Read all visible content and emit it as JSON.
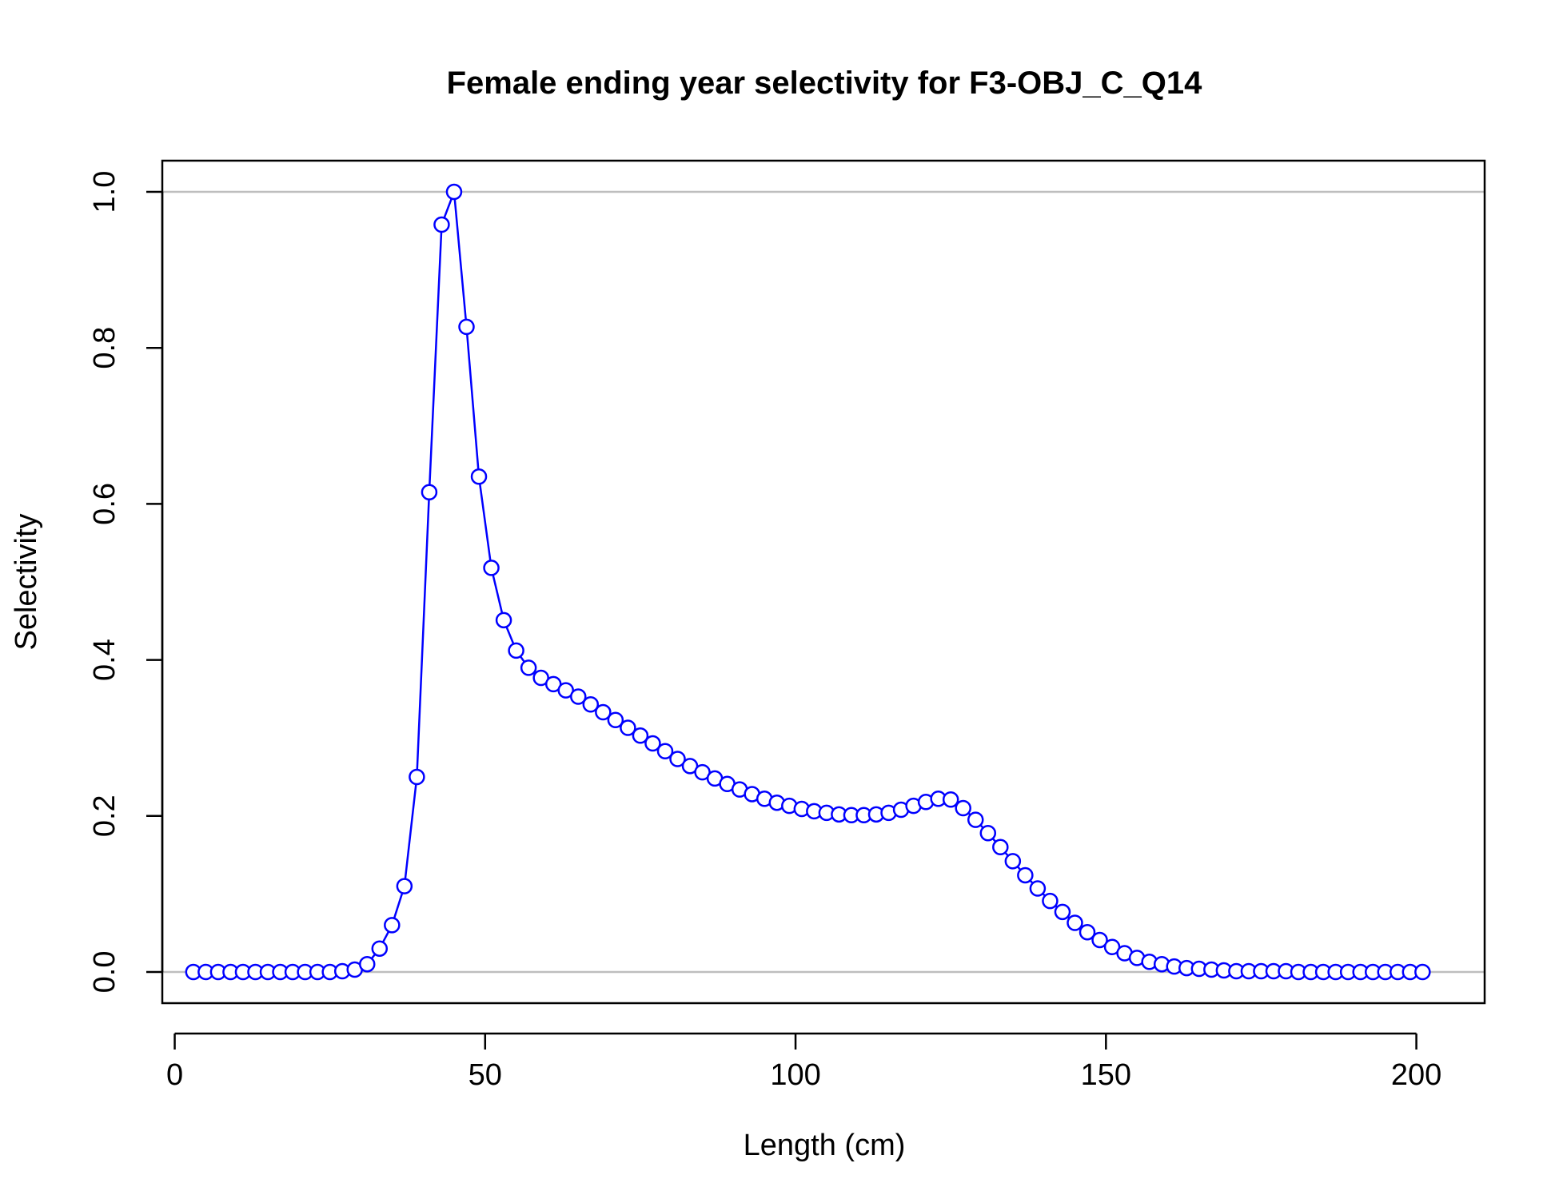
{
  "chart_data": {
    "type": "line",
    "title": "Female ending year selectivity for F3-OBJ_C_Q14",
    "xlabel": "Length (cm)",
    "ylabel": "Selectivity",
    "xlim": [
      -2,
      211
    ],
    "ylim": [
      -0.04,
      1.04
    ],
    "x_ticks": [
      0,
      50,
      100,
      150,
      200
    ],
    "x_tick_labels": [
      "0",
      "50",
      "100",
      "150",
      "200"
    ],
    "y_ticks": [
      0.0,
      0.2,
      0.4,
      0.6,
      0.8,
      1.0
    ],
    "y_tick_labels": [
      "0.0",
      "0.2",
      "0.4",
      "0.6",
      "0.8",
      "1.0"
    ],
    "reference_lines_y": [
      0,
      1
    ],
    "grid": false,
    "legend": "none",
    "colors": {
      "series": "#0000ff",
      "reference_line": "#bebebe",
      "axis": "#000000"
    },
    "marker": "open-circle",
    "series": [
      {
        "x": [
          3,
          5,
          7,
          9,
          11,
          13,
          15,
          17,
          19,
          21,
          23,
          25,
          27,
          29,
          31,
          33,
          35,
          37,
          39,
          41,
          43,
          45,
          47,
          49,
          51,
          53,
          55,
          57,
          59,
          61,
          63,
          65,
          67,
          69,
          71,
          73,
          75,
          77,
          79,
          81,
          83,
          85,
          87,
          89,
          91,
          93,
          95,
          97,
          99,
          101,
          103,
          105,
          107,
          109,
          111,
          113,
          115,
          117,
          119,
          121,
          123,
          125,
          127,
          129,
          131,
          133,
          135,
          137,
          139,
          141,
          143,
          145,
          147,
          149,
          151,
          153,
          155,
          157,
          159,
          161,
          163,
          165,
          167,
          169,
          171,
          173,
          175,
          177,
          179,
          181,
          183,
          185,
          187,
          189,
          191,
          193,
          195,
          197,
          199,
          201
        ],
        "y": [
          0,
          0,
          0,
          0,
          0,
          0,
          0,
          0,
          0,
          0,
          0,
          0,
          0.001,
          0.003,
          0.01,
          0.03,
          0.06,
          0.11,
          0.25,
          0.615,
          0.958,
          1.0,
          0.827,
          0.635,
          0.518,
          0.451,
          0.412,
          0.39,
          0.377,
          0.369,
          0.361,
          0.353,
          0.343,
          0.333,
          0.323,
          0.313,
          0.303,
          0.293,
          0.283,
          0.273,
          0.264,
          0.256,
          0.248,
          0.241,
          0.234,
          0.228,
          0.222,
          0.217,
          0.213,
          0.209,
          0.206,
          0.204,
          0.202,
          0.201,
          0.201,
          0.202,
          0.204,
          0.208,
          0.213,
          0.218,
          0.222,
          0.221,
          0.21,
          0.195,
          0.178,
          0.16,
          0.142,
          0.124,
          0.107,
          0.091,
          0.077,
          0.063,
          0.051,
          0.041,
          0.032,
          0.024,
          0.018,
          0.013,
          0.01,
          0.007,
          0.005,
          0.004,
          0.003,
          0.002,
          0.001,
          0.001,
          0.001,
          0.001,
          0.001,
          0,
          0,
          0,
          0,
          0,
          0,
          0,
          0,
          0,
          0,
          0
        ]
      }
    ]
  }
}
